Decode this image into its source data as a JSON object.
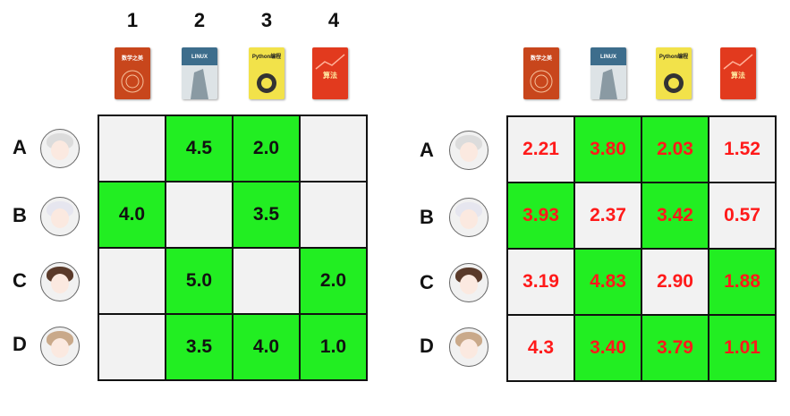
{
  "columns": [
    "1",
    "2",
    "3",
    "4"
  ],
  "books": [
    {
      "name": "math-book",
      "color": "#c8461c",
      "text": "数学之美"
    },
    {
      "name": "linux-book",
      "color": "#3d6d8c",
      "text": "LINUX"
    },
    {
      "name": "python-book",
      "color": "#f2e24a",
      "text": "Python编程"
    },
    {
      "name": "algorithm-book",
      "color": "#e23a1e",
      "text": "算法"
    }
  ],
  "rows": [
    "A",
    "B",
    "C",
    "D"
  ],
  "colors": {
    "filled": "#22ee22",
    "empty": "#f2f2f2",
    "predicted_text": "#ff1a1a"
  },
  "ratings": [
    [
      "",
      "4.5",
      "2.0",
      ""
    ],
    [
      "4.0",
      "",
      "3.5",
      ""
    ],
    [
      "",
      "5.0",
      "",
      "2.0"
    ],
    [
      "",
      "3.5",
      "4.0",
      "1.0"
    ]
  ],
  "predictions": [
    [
      "2.21",
      "3.80",
      "2.03",
      "1.52"
    ],
    [
      "3.93",
      "2.37",
      "3.42",
      "0.57"
    ],
    [
      "3.19",
      "4.83",
      "2.90",
      "1.88"
    ],
    [
      "4.3",
      "3.40",
      "3.79",
      "1.01"
    ]
  ],
  "predictions_highlight": [
    [
      false,
      true,
      true,
      false
    ],
    [
      true,
      false,
      true,
      false
    ],
    [
      false,
      true,
      false,
      true
    ],
    [
      false,
      true,
      true,
      true
    ]
  ]
}
